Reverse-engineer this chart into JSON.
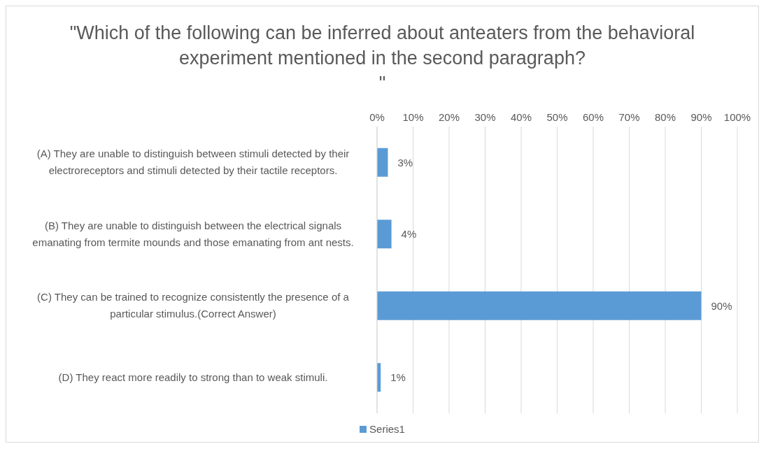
{
  "chart_data": {
    "type": "bar",
    "orientation": "horizontal",
    "title": "\"Which of the following can be inferred about anteaters from the behavioral experiment mentioned in the second paragraph?\n\"",
    "categories": [
      "(A) They are unable to distinguish between stimuli detected by their electroreceptors and stimuli detected by their tactile receptors.",
      "(B) They are unable to distinguish between the electrical signals emanating from termite mounds and those emanating from ant nests.",
      "(C) They can be trained to recognize consistently the presence of a particular stimulus.(Correct Answer)",
      "(D) They react more readily to strong than to weak stimuli."
    ],
    "series": [
      {
        "name": "Series1",
        "color": "#5b9bd5",
        "values": [
          3,
          4,
          90,
          1
        ],
        "value_labels": [
          "3%",
          "4%",
          "90%",
          "1%"
        ]
      }
    ],
    "xlim": [
      0,
      100
    ],
    "xticks": [
      {
        "value": 0,
        "label": "0%"
      },
      {
        "value": 10,
        "label": "10%"
      },
      {
        "value": 20,
        "label": "20%"
      },
      {
        "value": 30,
        "label": "30%"
      },
      {
        "value": 40,
        "label": "40%"
      },
      {
        "value": 50,
        "label": "50%"
      },
      {
        "value": 60,
        "label": "60%"
      },
      {
        "value": 70,
        "label": "70%"
      },
      {
        "value": 80,
        "label": "80%"
      },
      {
        "value": 90,
        "label": "90%"
      },
      {
        "value": 100,
        "label": "100%"
      }
    ],
    "grid": "x",
    "legend": "bottom"
  }
}
